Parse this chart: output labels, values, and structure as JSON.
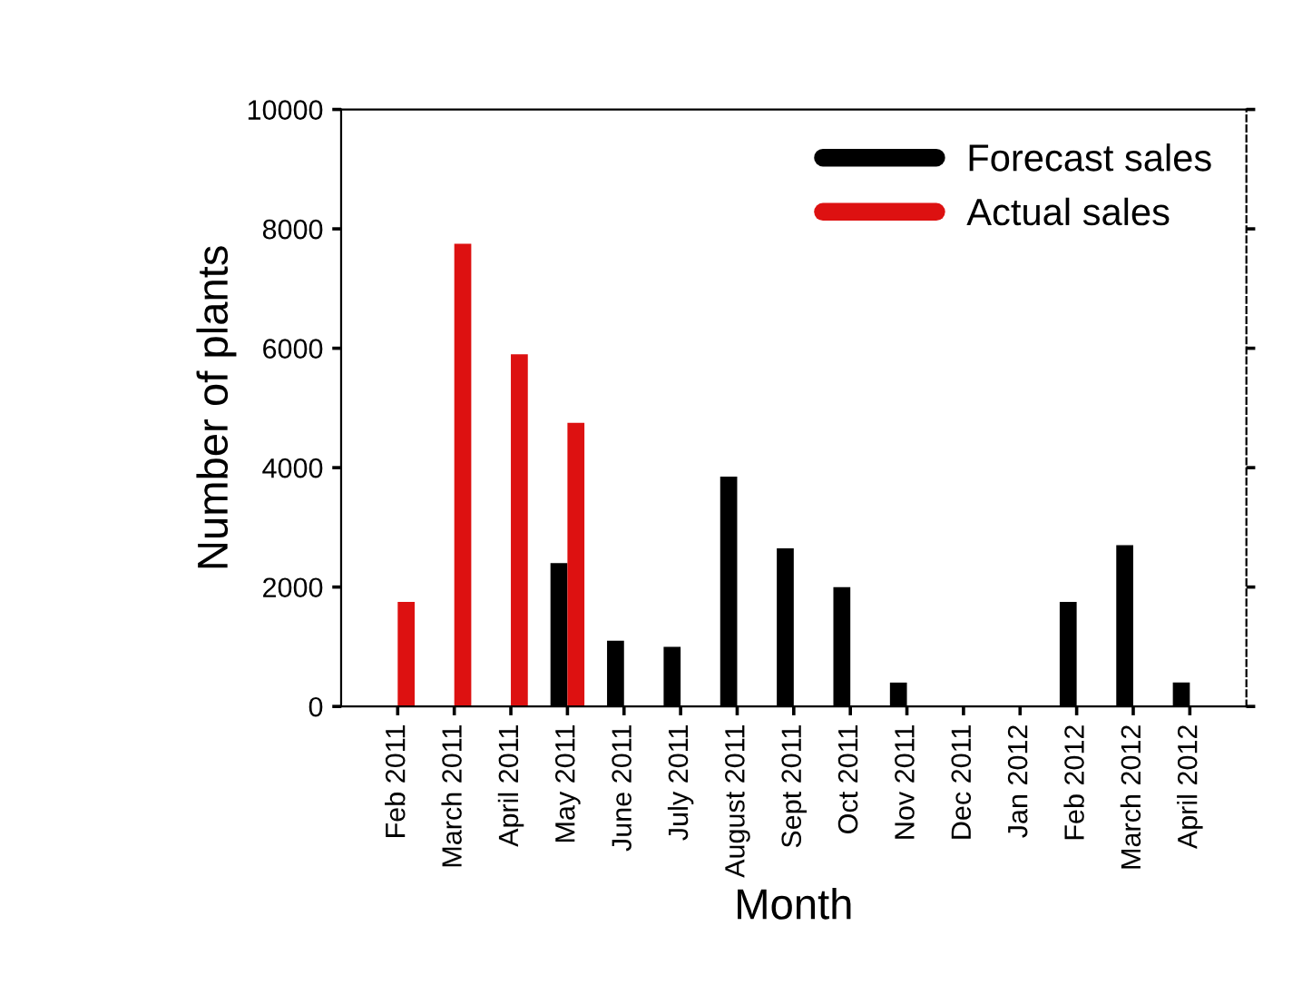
{
  "chart_data": {
    "type": "bar",
    "xlabel": "Month",
    "ylabel": "Number of plants",
    "categories": [
      "Feb 2011",
      "March 2011",
      "April 2011",
      "May 2011",
      "June 2011",
      "July 2011",
      "August 2011",
      "Sept 2011",
      "Oct 2011",
      "Nov 2011",
      "Dec 2011",
      "Jan 2012",
      "Feb 2012",
      "March 2012",
      "April 2012"
    ],
    "series": [
      {
        "name": "Forecast sales",
        "color": "#000000",
        "values": [
          null,
          null,
          null,
          2400,
          1100,
          1000,
          3850,
          2650,
          2000,
          400,
          0,
          0,
          1750,
          2700,
          400
        ]
      },
      {
        "name": "Actual sales",
        "color": "#dd1111",
        "values": [
          1750,
          7750,
          5900,
          4750,
          null,
          null,
          null,
          null,
          null,
          null,
          null,
          null,
          null,
          null,
          null
        ]
      }
    ],
    "ylim": [
      0,
      10000
    ],
    "yticks": [
      0,
      2000,
      4000,
      6000,
      8000,
      10000
    ],
    "grid": false,
    "legend": "top right"
  }
}
